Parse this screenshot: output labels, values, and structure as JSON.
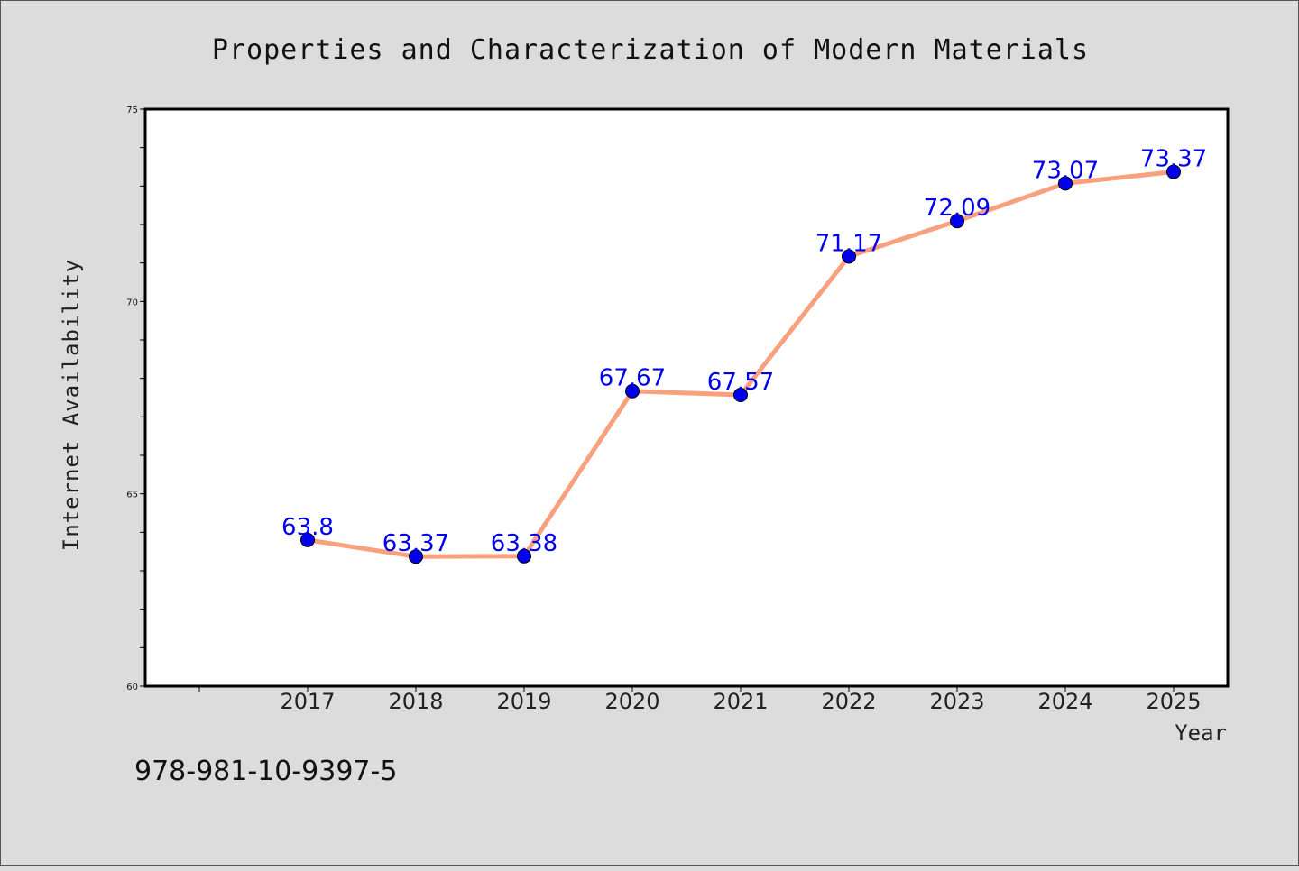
{
  "chart_data": {
    "type": "line",
    "title": "Properties and Characterization of Modern Materials",
    "xlabel": "Year",
    "ylabel": "Internet Availability",
    "categories": [
      "2017",
      "2018",
      "2019",
      "2020",
      "2021",
      "2022",
      "2023",
      "2024",
      "2025"
    ],
    "series": [
      {
        "values": [
          63.8,
          63.37,
          63.38,
          67.67,
          67.57,
          71.17,
          72.09,
          73.07,
          73.37
        ],
        "labels": [
          "63.8",
          "63.37",
          "63.38",
          "67.67",
          "67.57",
          "71.17",
          "72.09",
          "73.07",
          "73.37"
        ],
        "line_color": "#f9a07e",
        "marker_color": "#0000ee"
      }
    ],
    "ylim": [
      60,
      75
    ],
    "yticks": [
      "60",
      "65",
      "70",
      "75"
    ],
    "grid": false,
    "legend": "none"
  },
  "footnote": "978-981-10-9397-5",
  "colors": {
    "background": "#dcdcdc",
    "plot_area": "#ffffff",
    "label": "#0000ee"
  }
}
